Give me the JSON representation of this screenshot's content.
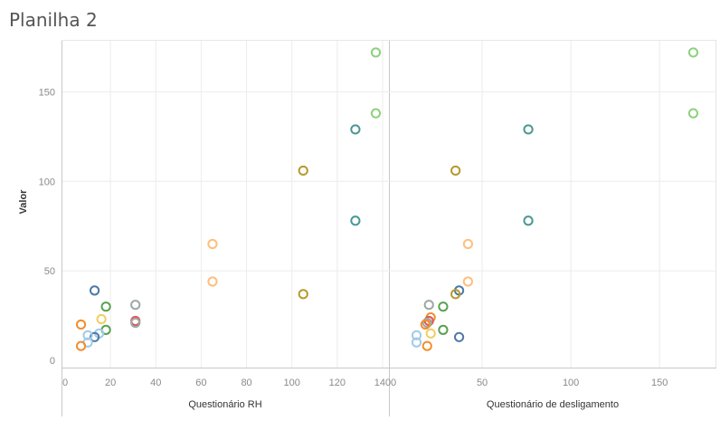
{
  "page": {
    "title": "Planilha 2"
  },
  "chart_data": {
    "type": "scatter",
    "ylabel": "Valor",
    "ylim": [
      0,
      175
    ],
    "yticks": [
      0,
      50,
      100,
      150
    ],
    "grid": true,
    "panels": [
      {
        "xlabel": "Questionário RH",
        "xlim": [
          0,
          142
        ],
        "xticks": [
          0,
          20,
          40,
          60,
          80,
          100,
          120,
          140
        ],
        "points": [
          {
            "x": 137,
            "y": 172,
            "color": "#8cd17d"
          },
          {
            "x": 137,
            "y": 138,
            "color": "#8cd17d"
          },
          {
            "x": 128,
            "y": 129,
            "color": "#499894"
          },
          {
            "x": 128,
            "y": 78,
            "color": "#499894"
          },
          {
            "x": 105,
            "y": 106,
            "color": "#b6992d"
          },
          {
            "x": 105,
            "y": 37,
            "color": "#b6992d"
          },
          {
            "x": 65,
            "y": 65,
            "color": "#ffbe7d"
          },
          {
            "x": 65,
            "y": 44,
            "color": "#ffbe7d"
          },
          {
            "x": 31,
            "y": 31,
            "color": "#9da7a6"
          },
          {
            "x": 31,
            "y": 22,
            "color": "#e15759"
          },
          {
            "x": 31,
            "y": 21,
            "color": "#9da7a6"
          },
          {
            "x": 13,
            "y": 39,
            "color": "#4e79a7"
          },
          {
            "x": 18,
            "y": 30,
            "color": "#59a14f"
          },
          {
            "x": 16,
            "y": 23,
            "color": "#f1ce63"
          },
          {
            "x": 18,
            "y": 17,
            "color": "#59a14f"
          },
          {
            "x": 15,
            "y": 15,
            "color": "#a0cbe8"
          },
          {
            "x": 13,
            "y": 13,
            "color": "#4e79a7"
          },
          {
            "x": 10,
            "y": 14,
            "color": "#a0cbe8"
          },
          {
            "x": 10,
            "y": 10,
            "color": "#a0cbe8"
          },
          {
            "x": 7,
            "y": 20,
            "color": "#f28e2b"
          },
          {
            "x": 7,
            "y": 8,
            "color": "#f28e2b"
          }
        ]
      },
      {
        "xlabel": "Questionário de desligamento",
        "xlim": [
          0,
          181
        ],
        "xticks": [
          0,
          50,
          100,
          150
        ],
        "points": [
          {
            "x": 169,
            "y": 172,
            "color": "#8cd17d"
          },
          {
            "x": 169,
            "y": 138,
            "color": "#8cd17d"
          },
          {
            "x": 76,
            "y": 129,
            "color": "#499894"
          },
          {
            "x": 76,
            "y": 78,
            "color": "#499894"
          },
          {
            "x": 35,
            "y": 106,
            "color": "#b6992d"
          },
          {
            "x": 42,
            "y": 65,
            "color": "#ffbe7d"
          },
          {
            "x": 42,
            "y": 44,
            "color": "#ffbe7d"
          },
          {
            "x": 37,
            "y": 39,
            "color": "#4e79a7"
          },
          {
            "x": 35,
            "y": 37,
            "color": "#b6992d"
          },
          {
            "x": 28,
            "y": 30,
            "color": "#59a14f"
          },
          {
            "x": 20,
            "y": 31,
            "color": "#9da7a6"
          },
          {
            "x": 21,
            "y": 24,
            "color": "#f28e2b"
          },
          {
            "x": 20,
            "y": 22,
            "color": "#e15759"
          },
          {
            "x": 19,
            "y": 21,
            "color": "#9da7a6"
          },
          {
            "x": 18,
            "y": 20,
            "color": "#f28e2b"
          },
          {
            "x": 28,
            "y": 17,
            "color": "#59a14f"
          },
          {
            "x": 21,
            "y": 15,
            "color": "#f1ce63"
          },
          {
            "x": 37,
            "y": 13,
            "color": "#4e79a7"
          },
          {
            "x": 13,
            "y": 14,
            "color": "#a0cbe8"
          },
          {
            "x": 13,
            "y": 10,
            "color": "#a0cbe8"
          },
          {
            "x": 19,
            "y": 8,
            "color": "#f28e2b"
          }
        ]
      }
    ]
  }
}
